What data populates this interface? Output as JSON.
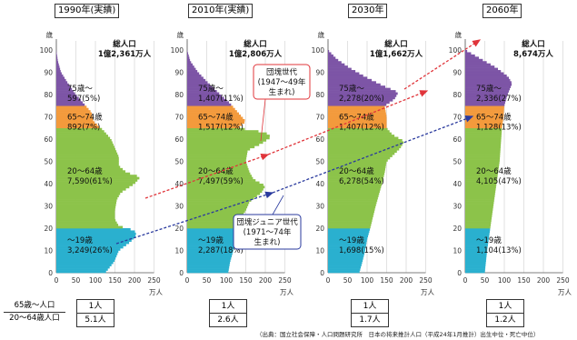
{
  "chart_data": {
    "type": "bar",
    "description_units": "万人",
    "age_axis": {
      "label": "歳",
      "ticks": [
        "0",
        "10",
        "20",
        "30",
        "40",
        "50",
        "60",
        "70",
        "80",
        "90",
        "100"
      ],
      "range": [
        0,
        100
      ]
    },
    "pop_axis": {
      "label": "万人",
      "ticks": [
        "0",
        "50",
        "100",
        "150",
        "200",
        "250"
      ],
      "range": [
        0,
        250
      ]
    },
    "panels": [
      {
        "year": "1990年(実績)",
        "total_label": "総人口",
        "total_value": "1億2,361万人",
        "groups": [
          {
            "label": "75歳～",
            "value": "597(5%)"
          },
          {
            "label": "65～74歳",
            "value": "892(7%)"
          },
          {
            "label": "20～64歳",
            "value": "7,590(61%)"
          },
          {
            "label": "～19歳",
            "value": "3,249(26%)"
          }
        ],
        "profile": [
          [
            0,
            125
          ],
          [
            5,
            148
          ],
          [
            10,
            160
          ],
          [
            14,
            190
          ],
          [
            17,
            205
          ],
          [
            19,
            200
          ],
          [
            21,
            160
          ],
          [
            24,
            150
          ],
          [
            28,
            150
          ],
          [
            33,
            155
          ],
          [
            36,
            165
          ],
          [
            40,
            200
          ],
          [
            43,
            215
          ],
          [
            45,
            180
          ],
          [
            48,
            160
          ],
          [
            52,
            160
          ],
          [
            56,
            150
          ],
          [
            60,
            140
          ],
          [
            64,
            120
          ],
          [
            68,
            95
          ],
          [
            72,
            90
          ],
          [
            76,
            70
          ],
          [
            80,
            50
          ],
          [
            85,
            30
          ],
          [
            90,
            12
          ],
          [
            95,
            4
          ],
          [
            100,
            0
          ]
        ]
      },
      {
        "year": "2010年(実績)",
        "total_label": "総人口",
        "total_value": "1億2,806万人",
        "groups": [
          {
            "label": "75歳～",
            "value": "1,407(11%)"
          },
          {
            "label": "65～74歳",
            "value": "1,517(12%)"
          },
          {
            "label": "20～64歳",
            "value": "7,497(59%)"
          },
          {
            "label": "～19歳",
            "value": "2,287(18%)"
          }
        ],
        "profile": [
          [
            0,
            105
          ],
          [
            5,
            110
          ],
          [
            10,
            118
          ],
          [
            15,
            122
          ],
          [
            20,
            125
          ],
          [
            24,
            135
          ],
          [
            28,
            150
          ],
          [
            32,
            160
          ],
          [
            36,
            190
          ],
          [
            39,
            200
          ],
          [
            42,
            170
          ],
          [
            45,
            160
          ],
          [
            50,
            150
          ],
          [
            55,
            155
          ],
          [
            58,
            190
          ],
          [
            61,
            215
          ],
          [
            63,
            200
          ],
          [
            65,
            130
          ],
          [
            68,
            150
          ],
          [
            72,
            130
          ],
          [
            76,
            110
          ],
          [
            80,
            85
          ],
          [
            85,
            55
          ],
          [
            90,
            28
          ],
          [
            95,
            8
          ],
          [
            100,
            0
          ]
        ]
      },
      {
        "year": "2030年",
        "total_label": "総人口",
        "total_value": "1億1,662万人",
        "groups": [
          {
            "label": "75歳～",
            "value": "2,278(20%)"
          },
          {
            "label": "65～74歳",
            "value": "1,407(12%)"
          },
          {
            "label": "20～64歳",
            "value": "6,278(54%)"
          },
          {
            "label": "～19歳",
            "value": "1,698(15%)"
          }
        ],
        "profile": [
          [
            0,
            80
          ],
          [
            5,
            88
          ],
          [
            10,
            95
          ],
          [
            15,
            100
          ],
          [
            20,
            108
          ],
          [
            25,
            115
          ],
          [
            30,
            122
          ],
          [
            35,
            130
          ],
          [
            40,
            138
          ],
          [
            45,
            145
          ],
          [
            50,
            150
          ],
          [
            56,
            185
          ],
          [
            59,
            195
          ],
          [
            62,
            165
          ],
          [
            65,
            150
          ],
          [
            70,
            150
          ],
          [
            75,
            145
          ],
          [
            78,
            170
          ],
          [
            81,
            180
          ],
          [
            84,
            140
          ],
          [
            88,
            95
          ],
          [
            92,
            55
          ],
          [
            96,
            22
          ],
          [
            100,
            0
          ]
        ]
      },
      {
        "year": "2060年",
        "total_label": "総人口",
        "total_value": "8,674万人",
        "groups": [
          {
            "label": "75歳～",
            "value": "2,336(27%)"
          },
          {
            "label": "65～74歳",
            "value": "1,128(13%)"
          },
          {
            "label": "20～64歳",
            "value": "4,105(47%)"
          },
          {
            "label": "～19歳",
            "value": "1,104(13%)"
          }
        ],
        "profile": [
          [
            0,
            50
          ],
          [
            10,
            56
          ],
          [
            20,
            64
          ],
          [
            30,
            72
          ],
          [
            40,
            80
          ],
          [
            50,
            88
          ],
          [
            60,
            92
          ],
          [
            65,
            94
          ],
          [
            70,
            98
          ],
          [
            75,
            100
          ],
          [
            80,
            108
          ],
          [
            85,
            120
          ],
          [
            88,
            110
          ],
          [
            92,
            80
          ],
          [
            96,
            40
          ],
          [
            100,
            0
          ]
        ]
      }
    ],
    "colors": {
      "u19": "#2ab0cf",
      "a20_64": "#8cc34a",
      "a65_74": "#f39a3c",
      "a75": "#7d55a6"
    },
    "annotations": {
      "dankai": "団塊世代\n(1947～49年\n生まれ)",
      "dankai_junior": "団塊ジュニア世代\n(1971～74年\n生まれ)"
    }
  },
  "ratios": {
    "label_num": "65歳～人口",
    "label_den": "20～64歳人口",
    "values": [
      {
        "num": "1人",
        "den": "5.1人"
      },
      {
        "num": "1人",
        "den": "2.6人"
      },
      {
        "num": "1人",
        "den": "1.7人"
      },
      {
        "num": "1人",
        "den": "1.2人"
      }
    ]
  },
  "source": "（出典：国立社会保障・人口問題研究所　日本の将来推計人口（平成24年1月推計）出生中位・死亡中位）"
}
